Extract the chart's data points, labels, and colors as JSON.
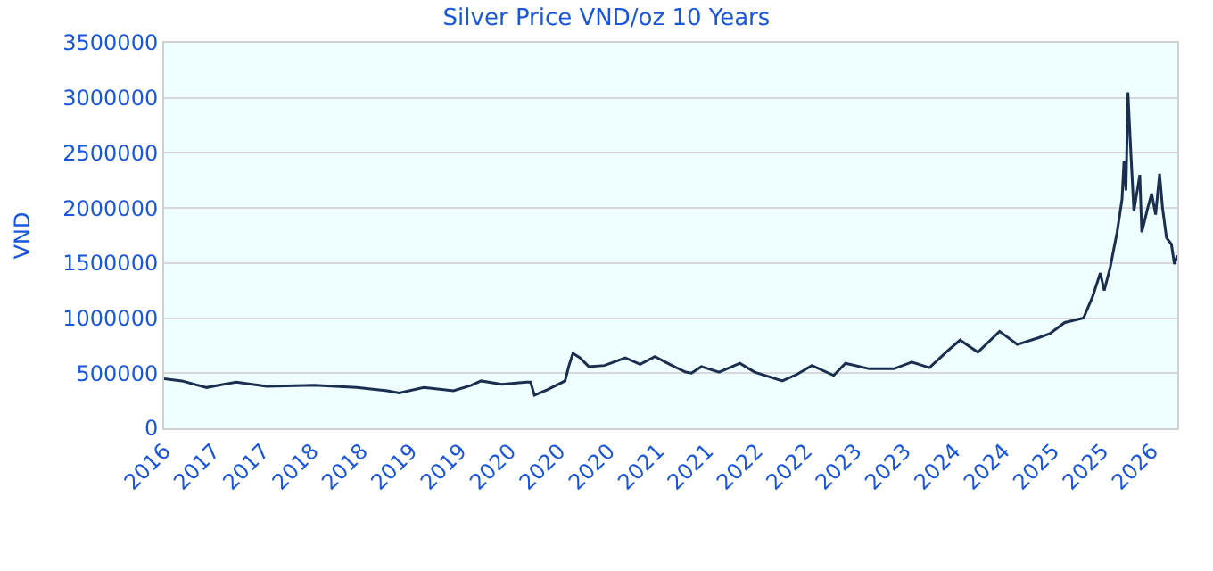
{
  "chart_data": {
    "type": "line",
    "title": "Silver Price VND/oz 10 Years",
    "ylabel": "VND",
    "x": [
      2016.0,
      2016.18,
      2016.43,
      2016.73,
      2017.04,
      2017.52,
      2017.95,
      2018.26,
      2018.38,
      2018.63,
      2018.93,
      2019.11,
      2019.21,
      2019.42,
      2019.67,
      2019.71,
      2019.75,
      2019.88,
      2020.06,
      2020.1,
      2020.14,
      2020.21,
      2020.3,
      2020.46,
      2020.67,
      2020.82,
      2020.97,
      2021.12,
      2021.28,
      2021.34,
      2021.44,
      2021.62,
      2021.83,
      2021.98,
      2022.26,
      2022.41,
      2022.56,
      2022.78,
      2022.9,
      2023.14,
      2023.39,
      2023.57,
      2023.75,
      2023.93,
      2024.06,
      2024.24,
      2024.46,
      2024.64,
      2024.85,
      2024.97,
      2025.12,
      2025.31,
      2025.4,
      2025.48,
      2025.52,
      2025.58,
      2025.65,
      2025.7,
      2025.72,
      2025.74,
      2025.76,
      2025.79,
      2025.82,
      2025.88,
      2025.9,
      2025.96,
      2026.0,
      2026.04,
      2026.08,
      2026.11,
      2026.15,
      2026.2,
      2026.23,
      2026.26
    ],
    "series": [
      {
        "color": "#1a2e50",
        "values": [
          450000,
          430000,
          370000,
          420000,
          380000,
          390000,
          370000,
          340000,
          320000,
          370000,
          340000,
          390000,
          430000,
          400000,
          420000,
          420000,
          300000,
          350000,
          430000,
          570000,
          680000,
          640000,
          560000,
          570000,
          640000,
          580000,
          650000,
          580000,
          510000,
          500000,
          560000,
          510000,
          590000,
          510000,
          430000,
          490000,
          570000,
          480000,
          590000,
          540000,
          540000,
          600000,
          550000,
          700000,
          800000,
          690000,
          880000,
          760000,
          820000,
          860000,
          960000,
          1000000,
          1190000,
          1410000,
          1250000,
          1460000,
          1780000,
          2080000,
          2430000,
          2160000,
          3050000,
          2490000,
          1970000,
          2300000,
          1780000,
          2000000,
          2130000,
          1940000,
          2310000,
          2000000,
          1730000,
          1670000,
          1490000,
          1570000
        ]
      }
    ],
    "xlim": [
      2016.0,
      2026.26
    ],
    "xticks": [
      {
        "value": 2016.0,
        "label": "2016"
      },
      {
        "value": 2016.5,
        "label": "2017"
      },
      {
        "value": 2017.0,
        "label": "2017"
      },
      {
        "value": 2017.5,
        "label": "2018"
      },
      {
        "value": 2018.0,
        "label": "2018"
      },
      {
        "value": 2018.5,
        "label": "2019"
      },
      {
        "value": 2019.0,
        "label": "2019"
      },
      {
        "value": 2019.5,
        "label": "2020"
      },
      {
        "value": 2020.0,
        "label": "2020"
      },
      {
        "value": 2020.5,
        "label": "2020"
      },
      {
        "value": 2021.0,
        "label": "2021"
      },
      {
        "value": 2021.5,
        "label": "2021"
      },
      {
        "value": 2022.0,
        "label": "2022"
      },
      {
        "value": 2022.5,
        "label": "2022"
      },
      {
        "value": 2023.0,
        "label": "2023"
      },
      {
        "value": 2023.5,
        "label": "2023"
      },
      {
        "value": 2024.0,
        "label": "2024"
      },
      {
        "value": 2024.5,
        "label": "2024"
      },
      {
        "value": 2025.0,
        "label": "2025"
      },
      {
        "value": 2025.5,
        "label": "2025"
      },
      {
        "value": 2026.0,
        "label": "2026"
      }
    ],
    "ylim": [
      0,
      3500000
    ],
    "yticks": [
      0,
      500000,
      1000000,
      1500000,
      2000000,
      2500000,
      3000000,
      3500000
    ],
    "grid": "y",
    "marker": "none",
    "line_style": "solid"
  }
}
